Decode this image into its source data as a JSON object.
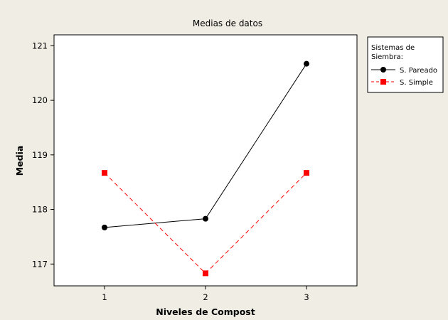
{
  "chart_data": {
    "type": "line",
    "title": "Medias de datos",
    "xlabel": "Niveles de Compost",
    "ylabel": "Media",
    "categories": [
      "1",
      "2",
      "3"
    ],
    "xlim": [
      0.5,
      3.5
    ],
    "ylim": [
      116.6,
      121.2
    ],
    "yticks": [
      "117",
      "118",
      "119",
      "120",
      "121"
    ],
    "legend": {
      "title_line1": "Sistemas de",
      "title_line2": "Siembra:",
      "placement": "right"
    },
    "series": [
      {
        "name": "S. Pareado",
        "values": [
          117.67,
          117.83,
          120.67
        ],
        "color": "#000000",
        "marker": "circle",
        "dash": "solid"
      },
      {
        "name": "S. Simple",
        "values": [
          118.67,
          116.83,
          118.67
        ],
        "color": "#ff0000",
        "marker": "square",
        "dash": "dashed"
      }
    ],
    "grid": false
  }
}
